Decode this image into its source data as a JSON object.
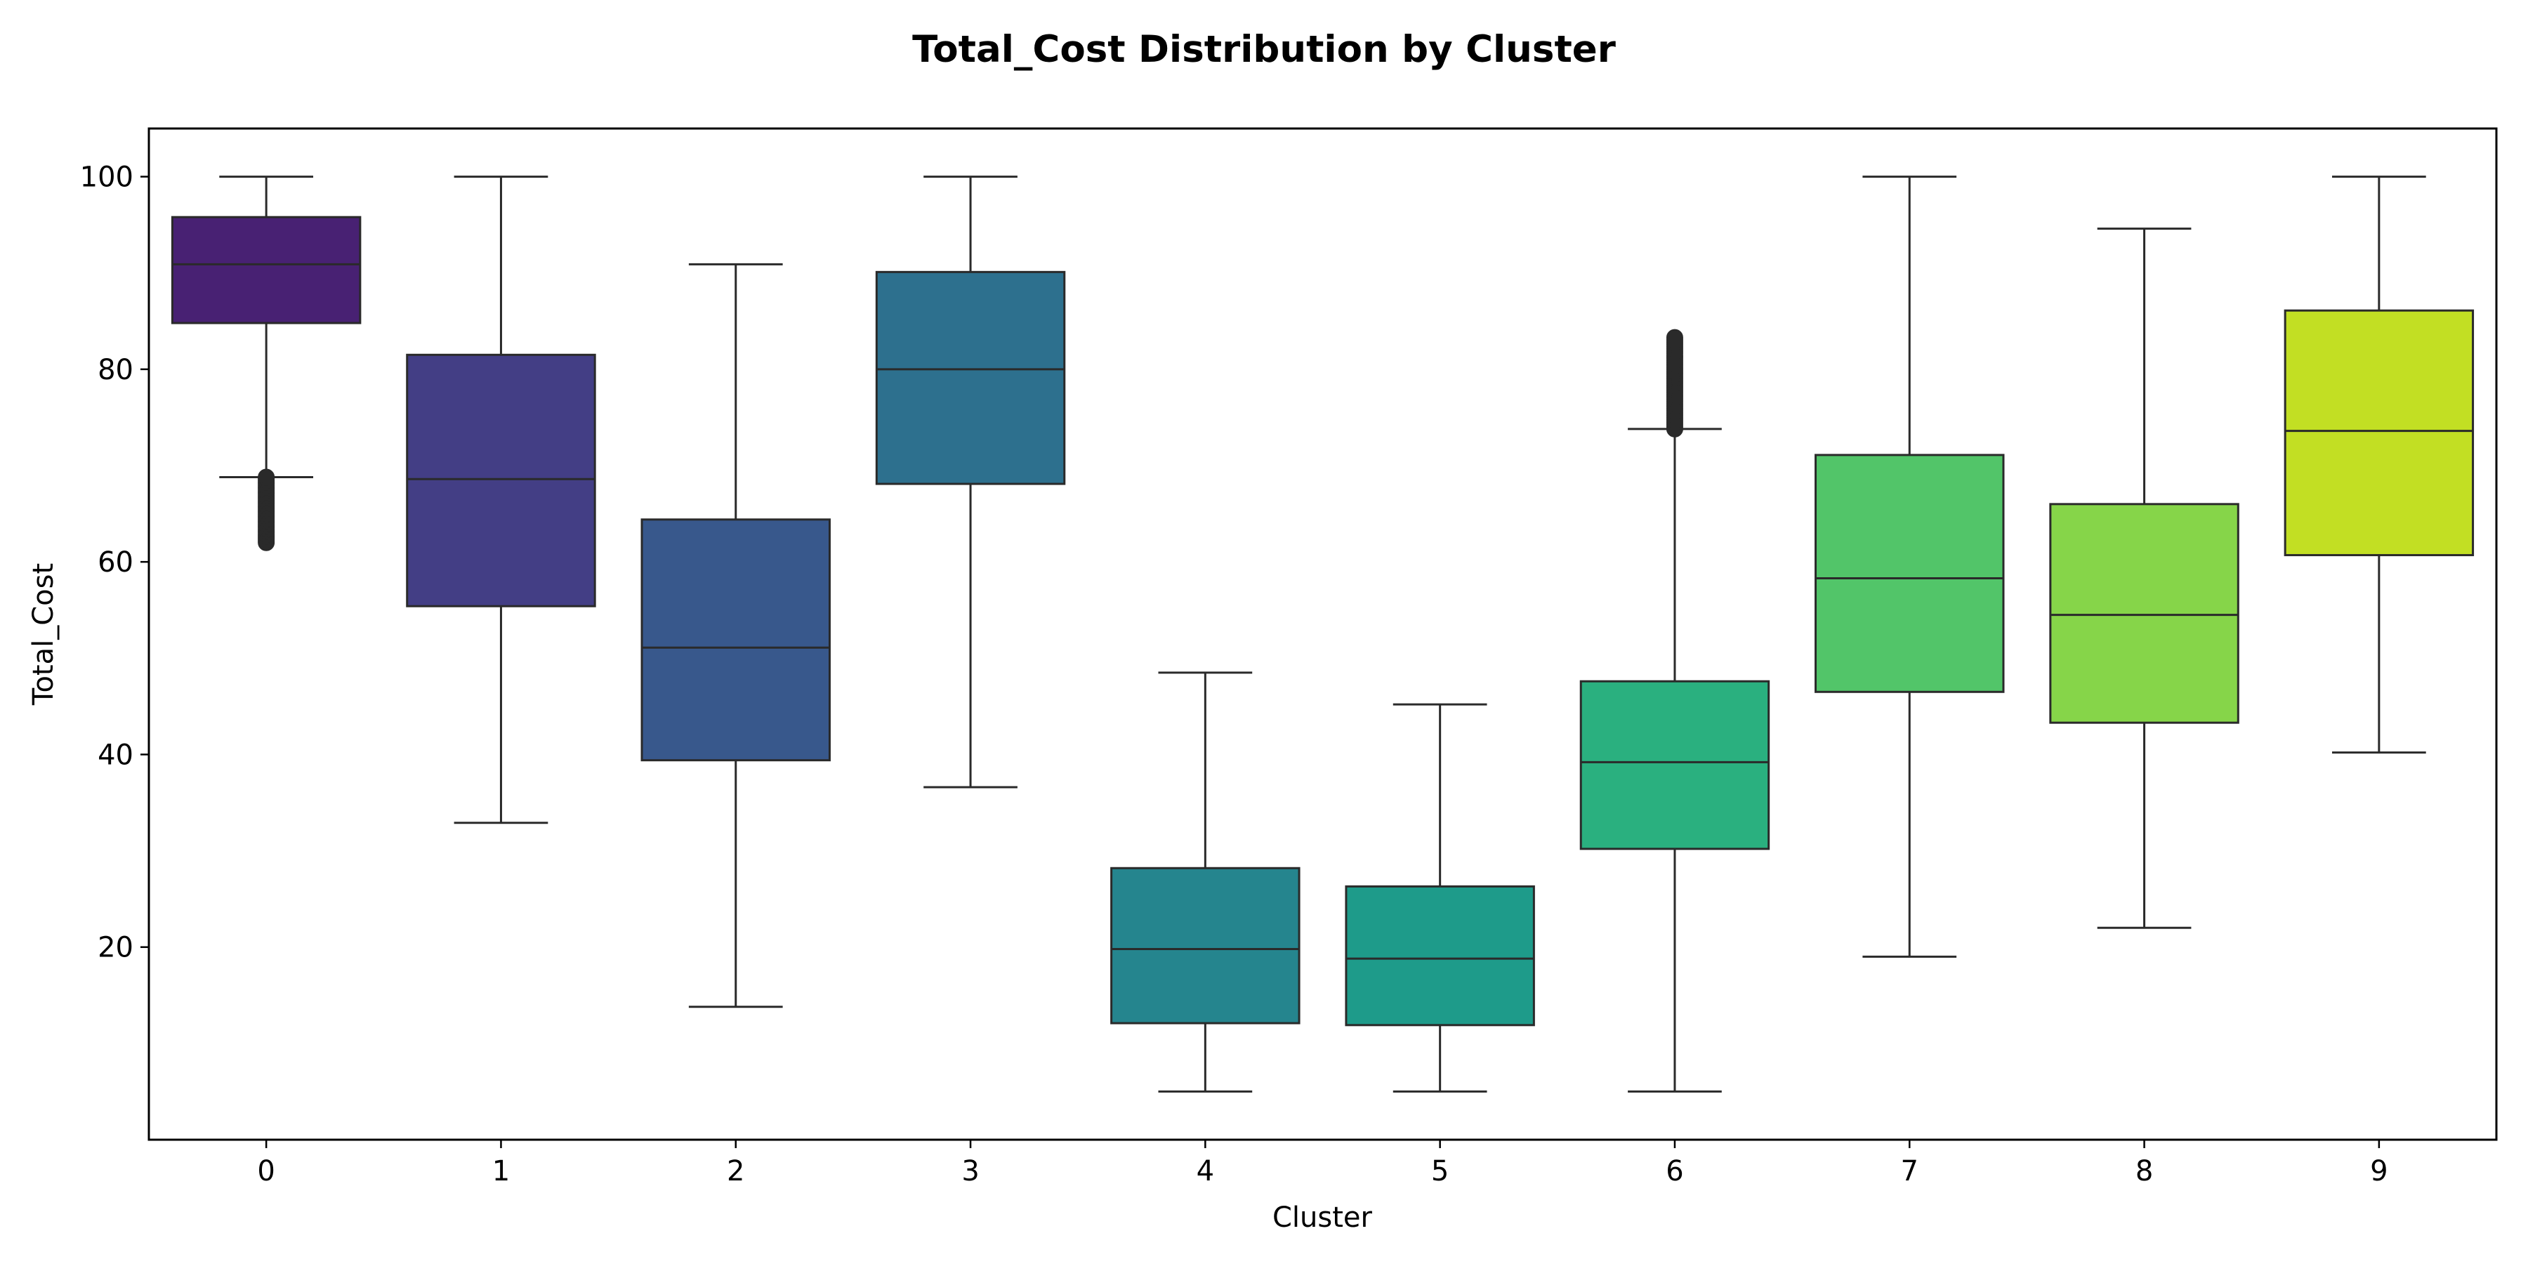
{
  "chart_data": {
    "type": "box",
    "title": "Total_Cost Distribution by Cluster",
    "xlabel": "Cluster",
    "ylabel": "Total_Cost",
    "ylim": [
      0,
      105
    ],
    "yticks": [
      20,
      40,
      60,
      80,
      100
    ],
    "grid": false,
    "legend": "none",
    "categories": [
      "0",
      "1",
      "2",
      "3",
      "4",
      "5",
      "6",
      "7",
      "8",
      "9"
    ],
    "boxes": [
      {
        "cluster": "0",
        "whisker_low": 68.8,
        "q1": 84.8,
        "median": 90.9,
        "q3": 95.8,
        "whisker_high": 100,
        "outliers_range": [
          62.0,
          68.8
        ],
        "color": "#482173"
      },
      {
        "cluster": "1",
        "whisker_low": 32.9,
        "q1": 55.4,
        "median": 68.6,
        "q3": 81.5,
        "whisker_high": 100,
        "outliers_range": null,
        "color": "#433e85"
      },
      {
        "cluster": "2",
        "whisker_low": 13.8,
        "q1": 39.4,
        "median": 51.1,
        "q3": 64.4,
        "whisker_high": 90.9,
        "outliers_range": null,
        "color": "#38588c"
      },
      {
        "cluster": "3",
        "whisker_low": 36.6,
        "q1": 68.1,
        "median": 80.0,
        "q3": 90.1,
        "whisker_high": 100,
        "outliers_range": null,
        "color": "#2d708e"
      },
      {
        "cluster": "4",
        "whisker_low": 5.0,
        "q1": 12.1,
        "median": 19.8,
        "q3": 28.2,
        "whisker_high": 48.5,
        "outliers_range": null,
        "color": "#25858e"
      },
      {
        "cluster": "5",
        "whisker_low": 5.0,
        "q1": 11.9,
        "median": 18.8,
        "q3": 26.3,
        "whisker_high": 45.2,
        "outliers_range": null,
        "color": "#1e9b8a"
      },
      {
        "cluster": "6",
        "whisker_low": 5.0,
        "q1": 30.2,
        "median": 39.2,
        "q3": 47.6,
        "whisker_high": 73.8,
        "outliers_range": [
          73.8,
          83.3
        ],
        "color": "#2ab07f"
      },
      {
        "cluster": "7",
        "whisker_low": 19.0,
        "q1": 46.5,
        "median": 58.3,
        "q3": 71.1,
        "whisker_high": 100,
        "outliers_range": null,
        "color": "#52c569"
      },
      {
        "cluster": "8",
        "whisker_low": 22.0,
        "q1": 43.3,
        "median": 54.5,
        "q3": 66.0,
        "whisker_high": 94.6,
        "outliers_range": null,
        "color": "#86d549"
      },
      {
        "cluster": "9",
        "whisker_low": 40.2,
        "q1": 60.7,
        "median": 73.6,
        "q3": 86.1,
        "whisker_high": 100,
        "outliers_range": null,
        "color": "#c2df23"
      }
    ]
  }
}
